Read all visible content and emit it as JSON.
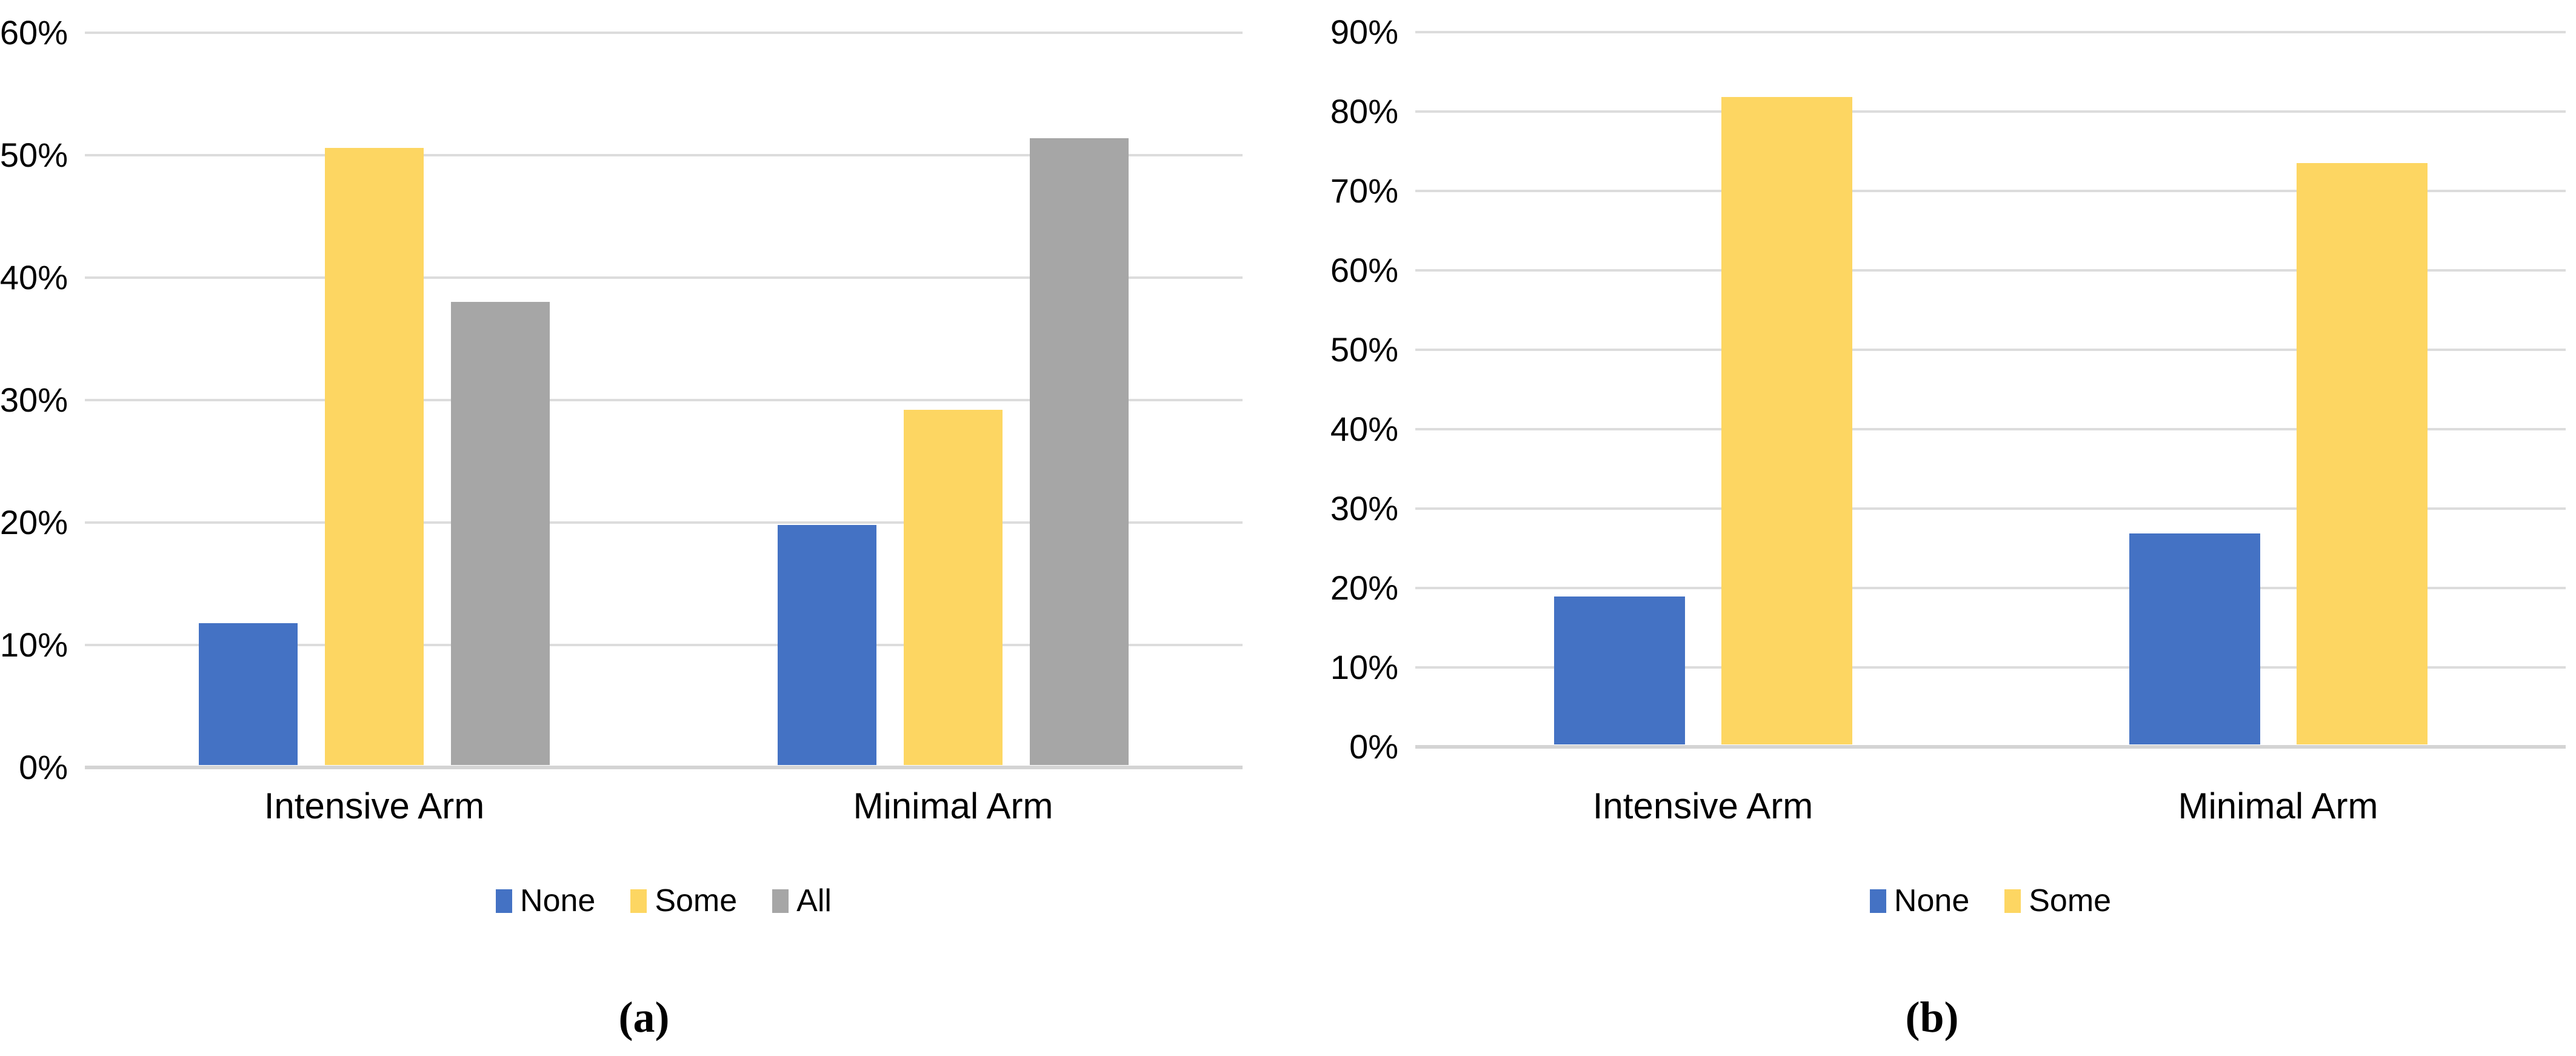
{
  "page": {
    "background": "#FFFFFF",
    "gridline_color": "#DCDCDC",
    "axis_line_color": "#D4D4D4",
    "text_color": "#000000"
  },
  "chart_data": [
    {
      "id": "a",
      "type": "bar",
      "title": "",
      "caption": "(a)",
      "categories": [
        "Intensive Arm",
        "Minimal Arm"
      ],
      "series": [
        {
          "name": "None",
          "color": "#4472C4",
          "values": [
            11.6,
            19.6
          ]
        },
        {
          "name": "Some",
          "color": "#FDD662",
          "values": [
            50.4,
            29.0
          ]
        },
        {
          "name": "All",
          "color": "#A6A6A6",
          "values": [
            37.8,
            51.2
          ]
        }
      ],
      "xlabel": "",
      "ylabel": "",
      "ylim": [
        0,
        60
      ],
      "ytick_step": 10,
      "yticks": [
        "0%",
        "10%",
        "20%",
        "30%",
        "40%",
        "50%",
        "60%"
      ],
      "grid": true,
      "legend_position": "bottom"
    },
    {
      "id": "b",
      "type": "bar",
      "title": "",
      "caption": "(b)",
      "categories": [
        "Intensive Arm",
        "Minimal Arm"
      ],
      "series": [
        {
          "name": "None",
          "color": "#4472C4",
          "values": [
            18.6,
            26.6
          ]
        },
        {
          "name": "Some",
          "color": "#FDD662",
          "values": [
            81.5,
            73.2
          ]
        }
      ],
      "xlabel": "",
      "ylabel": "",
      "ylim": [
        0,
        90
      ],
      "ytick_step": 10,
      "yticks": [
        "0%",
        "10%",
        "20%",
        "30%",
        "40%",
        "50%",
        "60%",
        "70%",
        "80%",
        "90%"
      ],
      "grid": true,
      "legend_position": "bottom"
    }
  ]
}
